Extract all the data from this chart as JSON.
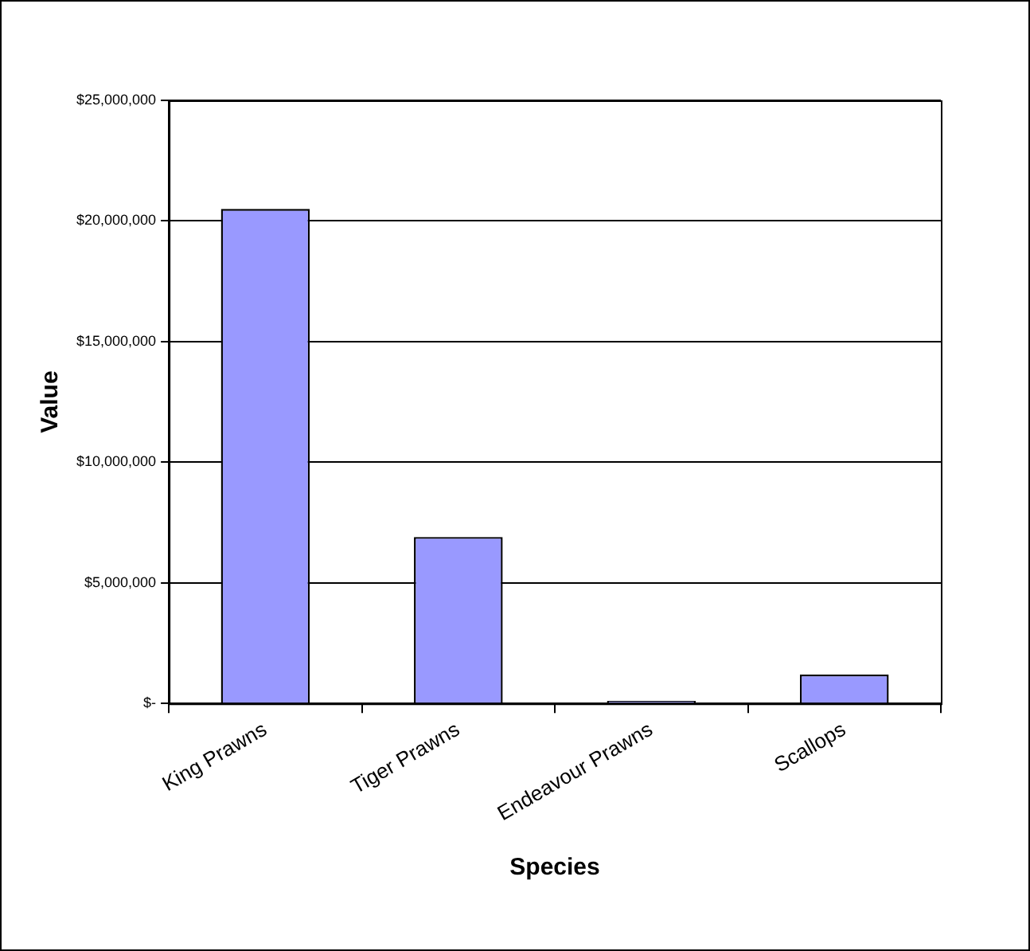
{
  "chart_data": {
    "type": "bar",
    "xlabel": "Species",
    "ylabel": "Value",
    "categories": [
      "King Prawns",
      "Tiger Prawns",
      "Endeavour Prawns",
      "Scallops"
    ],
    "values": [
      20500000,
      6900000,
      100000,
      1200000
    ],
    "color": "#9999ff",
    "ylim": [
      0,
      25000000
    ],
    "yticks": [
      {
        "value": 0,
        "label": "$-"
      },
      {
        "value": 5000000,
        "label": "$5,000,000"
      },
      {
        "value": 10000000,
        "label": "$10,000,000"
      },
      {
        "value": 15000000,
        "label": "$15,000,000"
      },
      {
        "value": 20000000,
        "label": "$20,000,000"
      },
      {
        "value": 25000000,
        "label": "$25,000,000"
      }
    ],
    "grid": "y",
    "legend": false
  }
}
